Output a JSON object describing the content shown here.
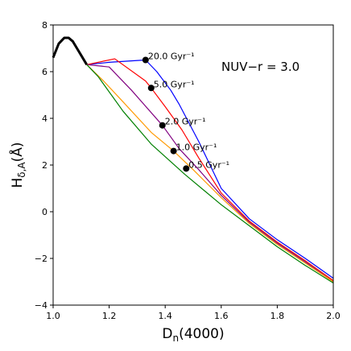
{
  "chart_data": {
    "type": "line",
    "xlabel_main": "D",
    "xlabel_sub": "n",
    "xlabel_rest": "(4000)",
    "ylabel_main": "H",
    "ylabel_sub": "δ,A",
    "ylabel_rest": "(Å)",
    "xlim": [
      1.0,
      2.0
    ],
    "ylim": [
      -4,
      8
    ],
    "xticks": [
      1.0,
      1.2,
      1.4,
      1.6,
      1.8,
      2.0
    ],
    "yticks": [
      -4,
      -2,
      0,
      2,
      4,
      6,
      8
    ],
    "xtick_labels": [
      "1.0",
      "1.2",
      "1.4",
      "1.6",
      "1.8",
      "2.0"
    ],
    "ytick_labels": [
      "−4",
      "−2",
      "0",
      "2",
      "4",
      "6",
      "8"
    ],
    "annotation": "NUV−r = 3.0",
    "grid": false,
    "series": [
      {
        "color": "#000000",
        "width": 3.0,
        "x": [
          1.0,
          1.02,
          1.04,
          1.055,
          1.07,
          1.085,
          1.1,
          1.12
        ],
        "y": [
          6.6,
          7.2,
          7.45,
          7.45,
          7.3,
          7.0,
          6.7,
          6.3
        ]
      },
      {
        "color": "#0000ff",
        "x": [
          1.12,
          1.2,
          1.33,
          1.37,
          1.42,
          1.45,
          1.52,
          1.6,
          1.7,
          1.8,
          1.9,
          2.0
        ],
        "y": [
          6.3,
          6.4,
          6.5,
          6.0,
          5.2,
          4.6,
          3.0,
          1.0,
          -0.3,
          -1.2,
          -2.0,
          -2.85
        ]
      },
      {
        "color": "#ff0000",
        "x": [
          1.12,
          1.22,
          1.33,
          1.35,
          1.4,
          1.46,
          1.52,
          1.6,
          1.7,
          1.8,
          1.9,
          2.0
        ],
        "y": [
          6.3,
          6.55,
          5.6,
          5.3,
          4.5,
          3.5,
          2.3,
          0.8,
          -0.4,
          -1.3,
          -2.1,
          -2.95
        ]
      },
      {
        "color": "#800080",
        "x": [
          1.12,
          1.2,
          1.28,
          1.39,
          1.45,
          1.52,
          1.6,
          1.7,
          1.8,
          1.9,
          2.0
        ],
        "y": [
          6.3,
          6.2,
          5.2,
          3.7,
          2.7,
          1.8,
          0.7,
          -0.45,
          -1.35,
          -2.15,
          -3.0
        ]
      },
      {
        "color": "#ff9900",
        "x": [
          1.12,
          1.18,
          1.25,
          1.35,
          1.43,
          1.5,
          1.6,
          1.7,
          1.8,
          1.9,
          2.0
        ],
        "y": [
          6.3,
          5.6,
          4.7,
          3.4,
          2.6,
          1.8,
          0.6,
          -0.5,
          -1.4,
          -2.2,
          -3.0
        ]
      },
      {
        "color": "#008000",
        "x": [
          1.12,
          1.16,
          1.25,
          1.35,
          1.47,
          1.6,
          1.7,
          1.8,
          1.9,
          2.0
        ],
        "y": [
          6.3,
          5.8,
          4.3,
          2.9,
          1.6,
          0.3,
          -0.6,
          -1.5,
          -2.3,
          -3.05
        ]
      }
    ],
    "points": [
      {
        "x": 1.33,
        "y": 6.5,
        "label": "20.0 Gyr⁻¹"
      },
      {
        "x": 1.35,
        "y": 5.3,
        "label": "5.0 Gyr⁻¹"
      },
      {
        "x": 1.39,
        "y": 3.7,
        "label": "2.0 Gyr⁻¹"
      },
      {
        "x": 1.43,
        "y": 2.6,
        "label": "1.0 Gyr⁻¹"
      },
      {
        "x": 1.475,
        "y": 1.85,
        "label": "0.5 Gyr⁻¹"
      }
    ]
  }
}
